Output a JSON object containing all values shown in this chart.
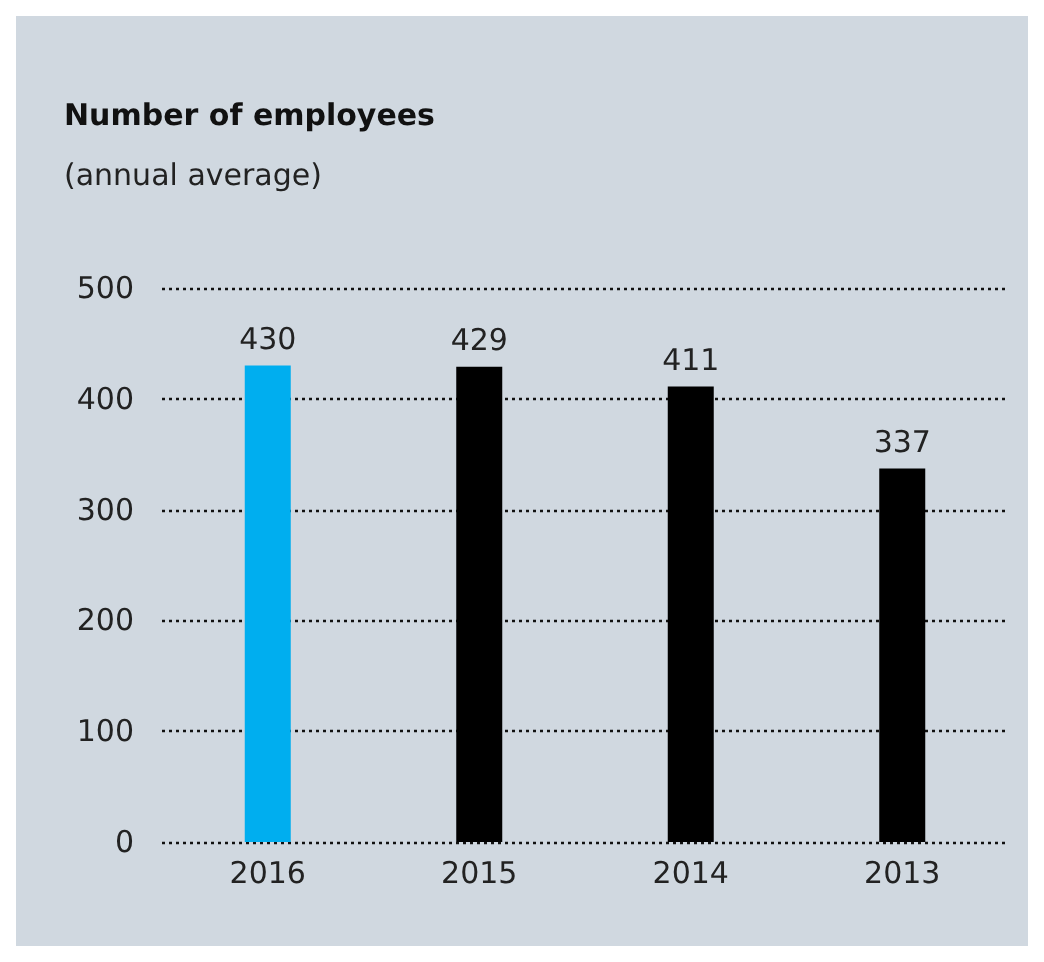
{
  "chart_data": {
    "type": "bar",
    "title": "Number of employees",
    "subtitle": "(annual average)",
    "categories": [
      "2016",
      "2015",
      "2014",
      "2013"
    ],
    "values": [
      430,
      429,
      411,
      337
    ],
    "colors": [
      "#00aeef",
      "#000000",
      "#000000",
      "#000000"
    ],
    "ylim": [
      0,
      500
    ],
    "yticks": [
      0,
      100,
      200,
      300,
      400,
      500
    ],
    "grid": "y",
    "line_style": "dotted",
    "data_labels": true
  }
}
